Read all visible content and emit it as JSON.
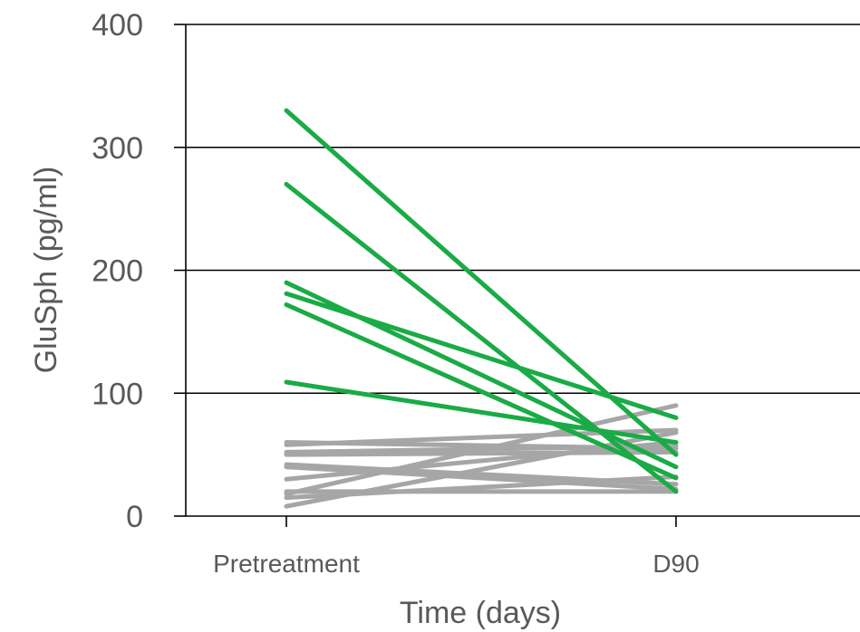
{
  "chart_data": {
    "type": "line",
    "title": "",
    "xlabel": "Time (days)",
    "ylabel": "GluSph (pg/ml)",
    "categories": [
      "Pretreatment",
      "D90"
    ],
    "ylim": [
      0,
      400
    ],
    "yticks": [
      0,
      100,
      200,
      300,
      400
    ],
    "grid": true,
    "legend": "none",
    "colors": {
      "responder": "#1aab46",
      "non_responder": "#a6a6a6",
      "grid": "#000000",
      "text": "#595959"
    },
    "series": [
      {
        "group": "gray",
        "values": [
          60,
          55
        ]
      },
      {
        "group": "gray",
        "values": [
          58,
          70
        ]
      },
      {
        "group": "gray",
        "values": [
          52,
          57
        ]
      },
      {
        "group": "gray",
        "values": [
          50,
          52
        ]
      },
      {
        "group": "gray",
        "values": [
          42,
          26
        ]
      },
      {
        "group": "gray",
        "values": [
          40,
          22
        ]
      },
      {
        "group": "gray",
        "values": [
          30,
          60
        ]
      },
      {
        "group": "gray",
        "values": [
          20,
          20
        ]
      },
      {
        "group": "gray",
        "values": [
          18,
          90
        ]
      },
      {
        "group": "gray",
        "values": [
          15,
          32
        ]
      },
      {
        "group": "gray",
        "values": [
          8,
          68
        ]
      },
      {
        "group": "green",
        "values": [
          330,
          50
        ]
      },
      {
        "group": "green",
        "values": [
          270,
          20
        ]
      },
      {
        "group": "green",
        "values": [
          190,
          40
        ]
      },
      {
        "group": "green",
        "values": [
          181,
          80
        ]
      },
      {
        "group": "green",
        "values": [
          172,
          31
        ]
      },
      {
        "group": "green",
        "values": [
          109,
          60
        ]
      }
    ]
  }
}
